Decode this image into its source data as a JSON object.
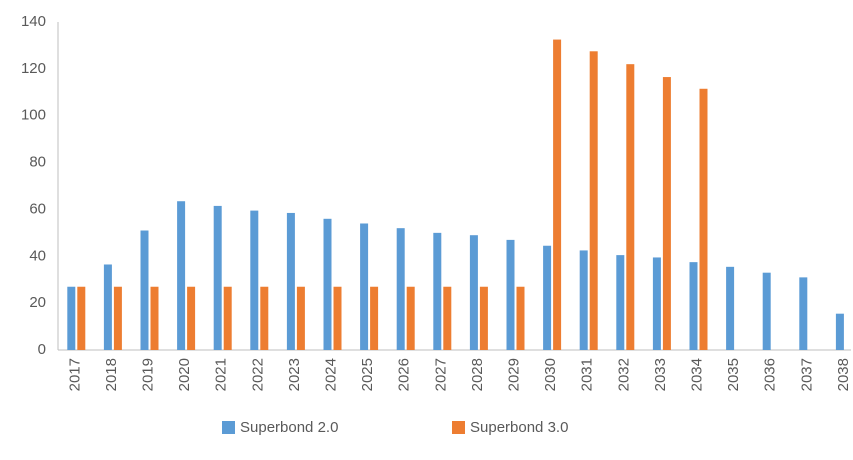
{
  "chart_data": {
    "type": "bar",
    "categories": [
      "2017",
      "2018",
      "2019",
      "2020",
      "2021",
      "2022",
      "2023",
      "2024",
      "2025",
      "2026",
      "2027",
      "2028",
      "2029",
      "2030",
      "2031",
      "2032",
      "2033",
      "2034",
      "2035",
      "2036",
      "2037",
      "2038"
    ],
    "series": [
      {
        "name": "Superbond 2.0",
        "color": "#5b9bd5",
        "values": [
          27,
          36.5,
          51,
          63.5,
          61.5,
          59.5,
          58.5,
          56,
          54,
          52,
          50,
          49,
          47,
          44.5,
          42.5,
          40.5,
          39.5,
          37.5,
          35.5,
          33,
          31,
          15.5
        ]
      },
      {
        "name": "Superbond 3.0",
        "color": "#ed7d31",
        "values": [
          27,
          27,
          27,
          27,
          27,
          27,
          27,
          27,
          27,
          27,
          27,
          27,
          27,
          132.5,
          127.5,
          122,
          116.5,
          111.5,
          null,
          null,
          null,
          null
        ]
      }
    ],
    "ylim": [
      0,
      140
    ],
    "yticks": [
      0,
      20,
      40,
      60,
      80,
      100,
      120,
      140
    ],
    "grid": false,
    "legend": "bottom"
  }
}
